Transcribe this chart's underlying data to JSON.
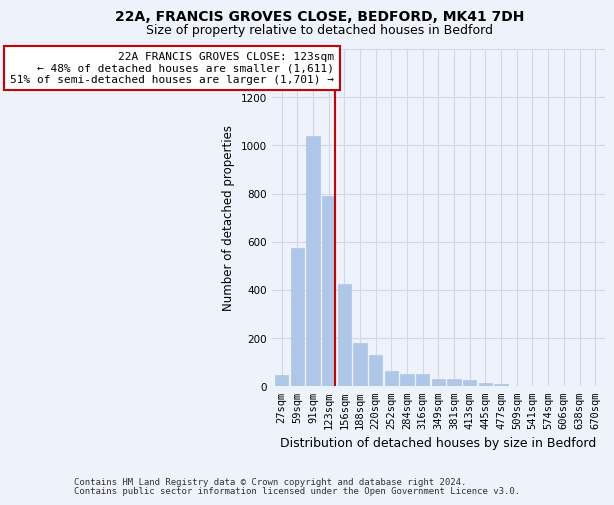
{
  "title1": "22A, FRANCIS GROVES CLOSE, BEDFORD, MK41 7DH",
  "title2": "Size of property relative to detached houses in Bedford",
  "xlabel": "Distribution of detached houses by size in Bedford",
  "ylabel": "Number of detached properties",
  "bar_labels": [
    "27sqm",
    "59sqm",
    "91sqm",
    "123sqm",
    "156sqm",
    "188sqm",
    "220sqm",
    "252sqm",
    "284sqm",
    "316sqm",
    "349sqm",
    "381sqm",
    "413sqm",
    "445sqm",
    "477sqm",
    "509sqm",
    "541sqm",
    "574sqm",
    "606sqm",
    "638sqm",
    "670sqm"
  ],
  "bar_values": [
    45,
    575,
    1040,
    790,
    425,
    180,
    130,
    65,
    50,
    50,
    30,
    30,
    25,
    15,
    10,
    0,
    0,
    0,
    0,
    0,
    0
  ],
  "bar_color": "#aec6e8",
  "bar_edgecolor": "#aec6e8",
  "red_line_index": 3,
  "red_line_color": "#cc0000",
  "annotation_text": "22A FRANCIS GROVES CLOSE: 123sqm\n← 48% of detached houses are smaller (1,611)\n51% of semi-detached houses are larger (1,701) →",
  "annotation_box_edgecolor": "#cc0000",
  "annotation_box_facecolor": "white",
  "ylim": [
    0,
    1400
  ],
  "yticks": [
    0,
    200,
    400,
    600,
    800,
    1000,
    1200,
    1400
  ],
  "grid_color": "#d0d8e8",
  "background_color": "#eef2fb",
  "footnote1": "Contains HM Land Registry data © Crown copyright and database right 2024.",
  "footnote2": "Contains public sector information licensed under the Open Government Licence v3.0.",
  "title1_fontsize": 10,
  "title2_fontsize": 9,
  "xlabel_fontsize": 9,
  "ylabel_fontsize": 8.5,
  "tick_fontsize": 7.5,
  "annotation_fontsize": 8,
  "footnote_fontsize": 6.5
}
